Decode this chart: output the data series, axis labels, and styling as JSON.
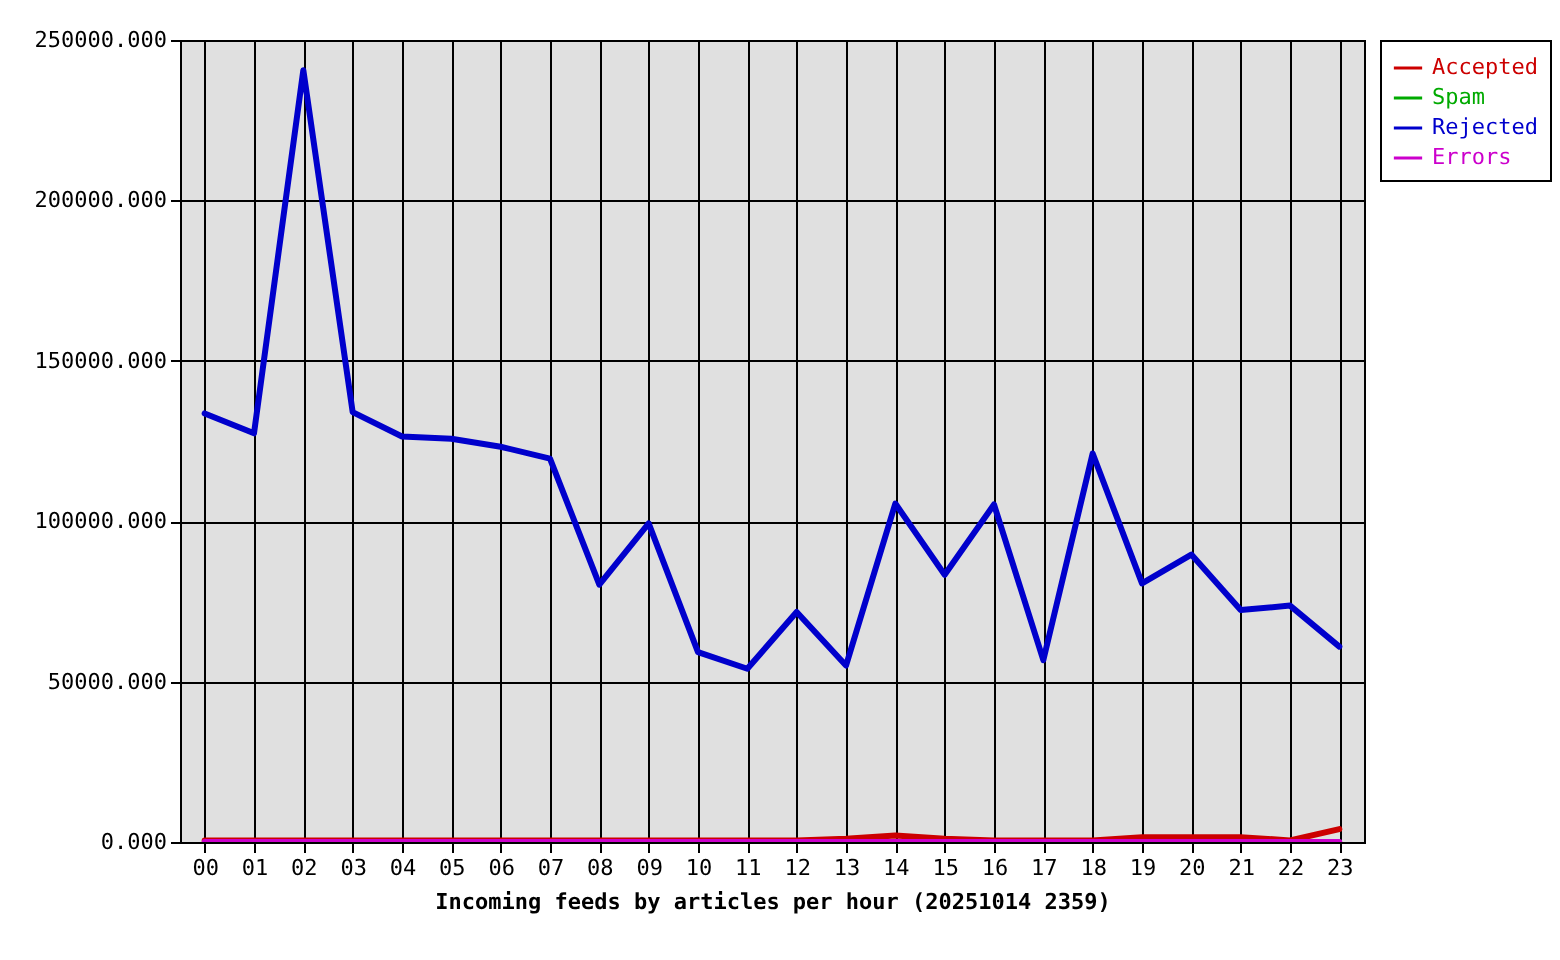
{
  "chart_data": {
    "type": "line",
    "xlabel": "Incoming feeds by articles per hour (20251014 2359)",
    "categories": [
      "00",
      "01",
      "02",
      "03",
      "04",
      "05",
      "06",
      "07",
      "08",
      "09",
      "10",
      "11",
      "12",
      "13",
      "14",
      "15",
      "16",
      "17",
      "18",
      "19",
      "20",
      "21",
      "22",
      "23"
    ],
    "series": [
      {
        "name": "Accepted",
        "color": "#cc0000",
        "values": [
          500,
          500,
          500,
          500,
          500,
          500,
          500,
          500,
          500,
          500,
          500,
          500,
          500,
          1000,
          2000,
          1000,
          500,
          500,
          500,
          1500,
          1500,
          1500,
          500,
          4000
        ]
      },
      {
        "name": "Spam",
        "color": "#00aa00",
        "values": [
          null,
          null,
          null,
          null,
          null,
          null,
          null,
          null,
          null,
          null,
          null,
          null,
          null,
          null,
          null,
          null,
          null,
          null,
          null,
          null,
          null,
          null,
          null,
          null
        ]
      },
      {
        "name": "Rejected",
        "color": "#0000cc",
        "values": [
          133600,
          127400,
          240600,
          134000,
          126400,
          125700,
          123200,
          119500,
          80200,
          99300,
          59200,
          54000,
          71700,
          55000,
          105500,
          83300,
          105200,
          56700,
          121100,
          80600,
          89600,
          72300,
          73700,
          60900
        ]
      },
      {
        "name": "Errors",
        "color": "#cc00cc",
        "values": [
          0,
          0,
          0,
          0,
          0,
          0,
          0,
          0,
          0,
          0,
          0,
          0,
          0,
          0,
          0,
          0,
          0,
          0,
          0,
          0,
          0,
          0,
          0,
          0
        ]
      }
    ],
    "ylim": [
      0,
      250000
    ],
    "yticks": [
      {
        "value": 0,
        "label": "0.000"
      },
      {
        "value": 50000,
        "label": "50000.000"
      },
      {
        "value": 100000,
        "label": "100000.000"
      },
      {
        "value": 150000,
        "label": "150000.000"
      },
      {
        "value": 200000,
        "label": "200000.000"
      },
      {
        "value": 250000,
        "label": "250000.000"
      }
    ],
    "grid": true,
    "legend": "top right",
    "line_style": "solid"
  }
}
